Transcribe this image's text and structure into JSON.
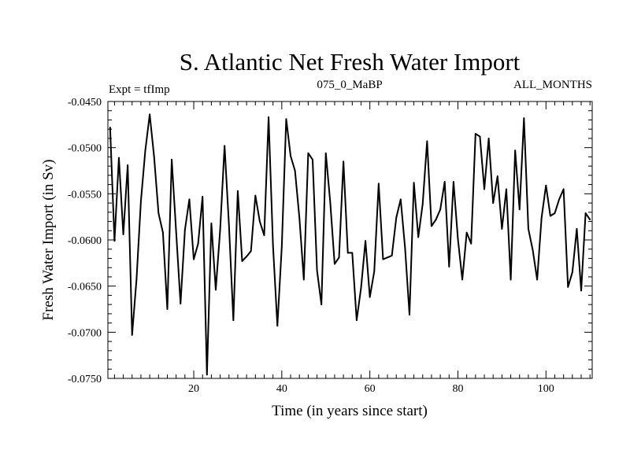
{
  "chart_data": {
    "type": "line",
    "title": "S. Atlantic Net Fresh Water Import",
    "subtitle_left": "Expt = tfImp",
    "subtitle_center": "075_0_MaBP",
    "subtitle_right": "ALL_MONTHS",
    "xlabel": "Time (in years since start)",
    "ylabel": "Fresh Water Import (in Sv)",
    "xlim": [
      0.5,
      110.5
    ],
    "ylim": [
      -0.075,
      -0.045
    ],
    "x_ticks": [
      20,
      40,
      60,
      80,
      100
    ],
    "x_tick_labels": [
      "20",
      "40",
      "60",
      "80",
      "100"
    ],
    "y_ticks": [
      -0.075,
      -0.07,
      -0.065,
      -0.06,
      -0.055,
      -0.05,
      -0.045
    ],
    "y_tick_labels": [
      "-0.0750",
      "-0.0700",
      "-0.0650",
      "-0.0600",
      "-0.0550",
      "-0.0500",
      "-0.0450"
    ],
    "grid": false,
    "series": [
      {
        "name": "Fresh Water Import",
        "x": [
          1,
          2,
          3,
          4,
          5,
          6,
          7,
          8,
          9,
          10,
          11,
          12,
          13,
          14,
          15,
          16,
          17,
          18,
          19,
          20,
          21,
          22,
          23,
          24,
          25,
          26,
          27,
          28,
          29,
          30,
          31,
          32,
          33,
          34,
          35,
          36,
          37,
          38,
          39,
          40,
          41,
          42,
          43,
          44,
          45,
          46,
          47,
          48,
          49,
          50,
          51,
          52,
          53,
          54,
          55,
          56,
          57,
          58,
          59,
          60,
          61,
          62,
          63,
          64,
          65,
          66,
          67,
          68,
          69,
          70,
          71,
          72,
          73,
          74,
          75,
          76,
          77,
          78,
          79,
          80,
          81,
          82,
          83,
          84,
          85,
          86,
          87,
          88,
          89,
          90,
          91,
          92,
          93,
          94,
          95,
          96,
          97,
          98,
          99,
          100,
          101,
          102,
          103,
          104,
          105,
          106,
          107,
          108,
          109,
          110
        ],
        "values": [
          -0.0478,
          -0.0601,
          -0.0511,
          -0.0594,
          -0.0519,
          -0.0703,
          -0.0643,
          -0.0558,
          -0.0503,
          -0.0464,
          -0.051,
          -0.0571,
          -0.0592,
          -0.0675,
          -0.0513,
          -0.0591,
          -0.0669,
          -0.0589,
          -0.0556,
          -0.0621,
          -0.0604,
          -0.0553,
          -0.0746,
          -0.0582,
          -0.0654,
          -0.0589,
          -0.0498,
          -0.0584,
          -0.0687,
          -0.0547,
          -0.0623,
          -0.0618,
          -0.0612,
          -0.0552,
          -0.058,
          -0.0595,
          -0.0467,
          -0.0606,
          -0.0693,
          -0.0607,
          -0.0469,
          -0.0509,
          -0.0525,
          -0.0576,
          -0.0643,
          -0.0506,
          -0.0513,
          -0.0633,
          -0.067,
          -0.0506,
          -0.0559,
          -0.0626,
          -0.0619,
          -0.0515,
          -0.0614,
          -0.0614,
          -0.0687,
          -0.0652,
          -0.0601,
          -0.0662,
          -0.0634,
          -0.0539,
          -0.0621,
          -0.0619,
          -0.0617,
          -0.0576,
          -0.0556,
          -0.0609,
          -0.0681,
          -0.0538,
          -0.0597,
          -0.0561,
          -0.0493,
          -0.0585,
          -0.0578,
          -0.0567,
          -0.0537,
          -0.0629,
          -0.0537,
          -0.0599,
          -0.0643,
          -0.0592,
          -0.0604,
          -0.0485,
          -0.0488,
          -0.0545,
          -0.049,
          -0.056,
          -0.0531,
          -0.0588,
          -0.0545,
          -0.0643,
          -0.0503,
          -0.0567,
          -0.0468,
          -0.0588,
          -0.0611,
          -0.0643,
          -0.0576,
          -0.0541,
          -0.0574,
          -0.0571,
          -0.0556,
          -0.0545,
          -0.0651,
          -0.0635,
          -0.0588,
          -0.0655,
          -0.0571,
          -0.0578
        ]
      }
    ]
  }
}
